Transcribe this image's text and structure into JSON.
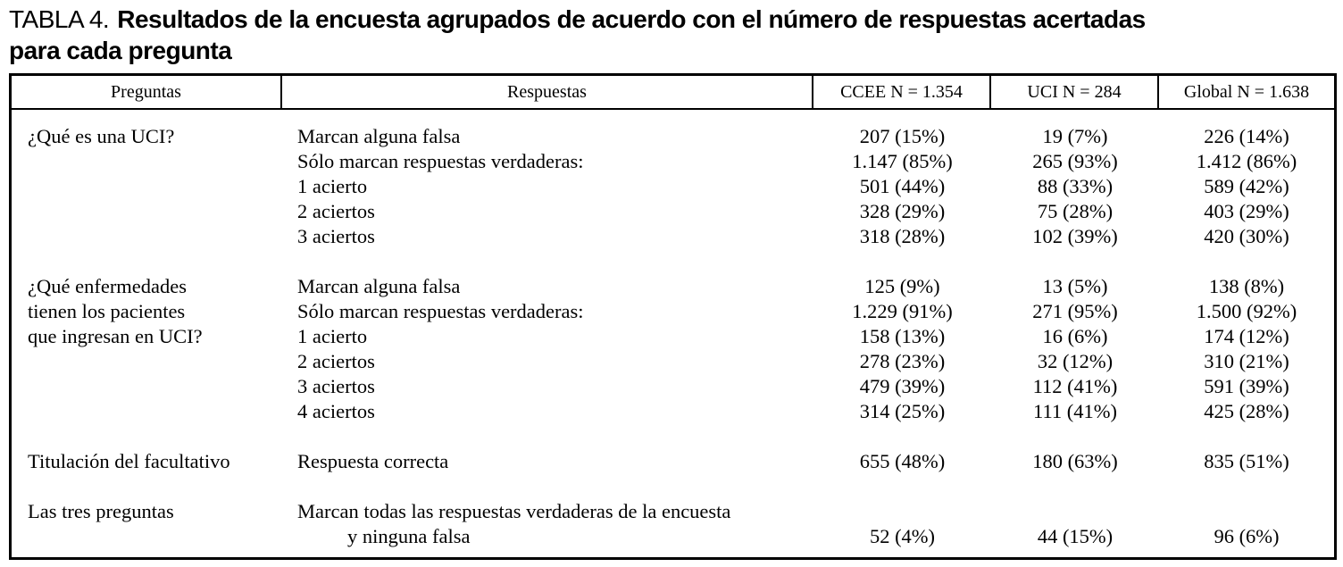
{
  "title": {
    "prefix": "TABLA 4.",
    "bold_part": "Resultados de la encuesta agrupados de acuerdo con el número de respuestas acertadas",
    "line2": "para cada pregunta"
  },
  "table": {
    "headers": {
      "preguntas": "Preguntas",
      "respuestas": "Respuestas",
      "ccee": "CCEE N = 1.354",
      "uci": "UCI N = 284",
      "global": "Global N = 1.638"
    },
    "blocks": [
      {
        "pregunta_lines": [
          "¿Qué es una UCI?"
        ],
        "rows": [
          {
            "respuesta": "Marcan alguna falsa",
            "ccee": "207 (15%)",
            "uci": "19 (7%)",
            "global": "226 (14%)"
          },
          {
            "respuesta": "Sólo marcan respuestas verdaderas:",
            "ccee": "1.147 (85%)",
            "uci": "265 (93%)",
            "global": "1.412 (86%)"
          },
          {
            "respuesta": "1 acierto",
            "ccee": "501 (44%)",
            "uci": "88 (33%)",
            "global": "589 (42%)"
          },
          {
            "respuesta": "2 aciertos",
            "ccee": "328 (29%)",
            "uci": "75 (28%)",
            "global": "403 (29%)"
          },
          {
            "respuesta": "3 aciertos",
            "ccee": "318 (28%)",
            "uci": "102 (39%)",
            "global": "420 (30%)"
          }
        ]
      },
      {
        "pregunta_lines": [
          "¿Qué enfermedades",
          "tienen los pacientes",
          "que ingresan en UCI?"
        ],
        "rows": [
          {
            "respuesta": "Marcan alguna falsa",
            "ccee": "125 (9%)",
            "uci": "13 (5%)",
            "global": "138 (8%)"
          },
          {
            "respuesta": "Sólo marcan respuestas verdaderas:",
            "ccee": "1.229 (91%)",
            "uci": "271 (95%)",
            "global": "1.500 (92%)"
          },
          {
            "respuesta": "1 acierto",
            "ccee": "158 (13%)",
            "uci": "16 (6%)",
            "global": "174 (12%)"
          },
          {
            "respuesta": "2 aciertos",
            "ccee": "278 (23%)",
            "uci": "32 (12%)",
            "global": "310 (21%)"
          },
          {
            "respuesta": "3 aciertos",
            "ccee": "479 (39%)",
            "uci": "112 (41%)",
            "global": "591 (39%)"
          },
          {
            "respuesta": "4 aciertos",
            "ccee": "314 (25%)",
            "uci": "111 (41%)",
            "global": "425 (28%)"
          }
        ]
      },
      {
        "pregunta_lines": [
          "Titulación del facultativo"
        ],
        "rows": [
          {
            "respuesta": "Respuesta correcta",
            "ccee": "655 (48%)",
            "uci": "180 (63%)",
            "global": "835 (51%)"
          }
        ]
      },
      {
        "pregunta_lines": [
          "Las tres preguntas"
        ],
        "rows": [
          {
            "respuesta": "Marcan todas las respuestas verdaderas de la encuesta",
            "ccee": "",
            "uci": "",
            "global": ""
          },
          {
            "respuesta": "y ninguna falsa",
            "ccee": "52 (4%)",
            "uci": "44 (15%)",
            "global": "96 (6%)"
          }
        ]
      }
    ]
  }
}
